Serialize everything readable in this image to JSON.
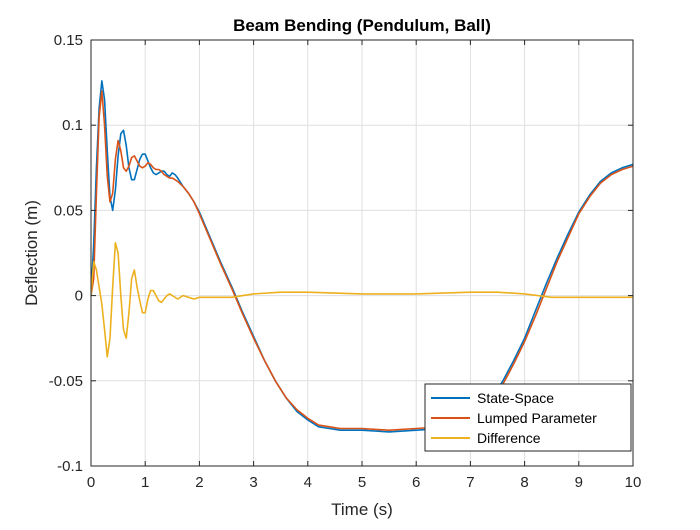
{
  "chart_data": {
    "type": "line",
    "title": "Beam Bending (Pendulum, Ball)",
    "xlabel": "Time (s)",
    "ylabel": "Deflection (m)",
    "xlim": [
      0,
      10
    ],
    "ylim": [
      -0.1,
      0.15
    ],
    "xticks": [
      0,
      1,
      2,
      3,
      4,
      5,
      6,
      7,
      8,
      9,
      10
    ],
    "xtick_labels": [
      "0",
      "1",
      "2",
      "3",
      "4",
      "5",
      "6",
      "7",
      "8",
      "9",
      "10"
    ],
    "yticks": [
      -0.1,
      -0.05,
      0,
      0.05,
      0.1,
      0.15
    ],
    "ytick_labels": [
      "-0.1",
      "-0.05",
      "0",
      "0.05",
      "0.1",
      "0.15"
    ],
    "grid": true,
    "legend_position": "bottom-right",
    "series": [
      {
        "name": "State-Space",
        "color": "#0072BD",
        "x": [
          0,
          0.05,
          0.1,
          0.15,
          0.2,
          0.25,
          0.3,
          0.35,
          0.4,
          0.45,
          0.5,
          0.55,
          0.6,
          0.65,
          0.7,
          0.75,
          0.8,
          0.85,
          0.9,
          0.95,
          1.0,
          1.05,
          1.1,
          1.15,
          1.2,
          1.25,
          1.3,
          1.35,
          1.4,
          1.45,
          1.5,
          1.55,
          1.6,
          1.7,
          1.8,
          1.9,
          2.0,
          2.2,
          2.4,
          2.6,
          2.8,
          3.0,
          3.2,
          3.4,
          3.6,
          3.8,
          4.0,
          4.2,
          4.4,
          4.6,
          4.8,
          5.0,
          5.5,
          6.0,
          6.5,
          7.0,
          7.2,
          7.4,
          7.6,
          7.8,
          8.0,
          8.2,
          8.4,
          8.6,
          8.8,
          9.0,
          9.2,
          9.4,
          9.6,
          9.8,
          10.0
        ],
        "y": [
          0.0,
          0.03,
          0.075,
          0.11,
          0.126,
          0.115,
          0.085,
          0.058,
          0.05,
          0.062,
          0.082,
          0.095,
          0.097,
          0.088,
          0.075,
          0.068,
          0.068,
          0.074,
          0.08,
          0.083,
          0.083,
          0.079,
          0.075,
          0.072,
          0.071,
          0.072,
          0.073,
          0.073,
          0.071,
          0.07,
          0.072,
          0.071,
          0.069,
          0.064,
          0.06,
          0.055,
          0.049,
          0.034,
          0.019,
          0.005,
          -0.01,
          -0.024,
          -0.038,
          -0.05,
          -0.06,
          -0.068,
          -0.073,
          -0.077,
          -0.078,
          -0.079,
          -0.079,
          -0.079,
          -0.08,
          -0.079,
          -0.078,
          -0.073,
          -0.068,
          -0.06,
          -0.05,
          -0.038,
          -0.025,
          -0.009,
          0.007,
          0.022,
          0.036,
          0.049,
          0.059,
          0.067,
          0.072,
          0.075,
          0.077
        ]
      },
      {
        "name": "Lumped Parameter",
        "color": "#D95319",
        "x": [
          0,
          0.05,
          0.1,
          0.15,
          0.2,
          0.25,
          0.3,
          0.35,
          0.4,
          0.45,
          0.5,
          0.55,
          0.6,
          0.65,
          0.7,
          0.75,
          0.8,
          0.85,
          0.9,
          0.95,
          1.0,
          1.05,
          1.1,
          1.15,
          1.2,
          1.25,
          1.3,
          1.35,
          1.4,
          1.45,
          1.5,
          1.55,
          1.6,
          1.7,
          1.8,
          1.9,
          2.0,
          2.2,
          2.4,
          2.6,
          2.8,
          3.0,
          3.2,
          3.4,
          3.6,
          3.8,
          4.0,
          4.2,
          4.4,
          4.6,
          4.8,
          5.0,
          5.5,
          6.0,
          6.5,
          7.0,
          7.2,
          7.4,
          7.6,
          7.8,
          8.0,
          8.2,
          8.4,
          8.6,
          8.8,
          9.0,
          9.2,
          9.4,
          9.6,
          9.8,
          10.0
        ],
        "y": [
          0.0,
          0.01,
          0.06,
          0.105,
          0.12,
          0.1,
          0.07,
          0.055,
          0.06,
          0.08,
          0.091,
          0.085,
          0.075,
          0.073,
          0.076,
          0.081,
          0.082,
          0.079,
          0.076,
          0.075,
          0.076,
          0.078,
          0.077,
          0.075,
          0.074,
          0.074,
          0.073,
          0.071,
          0.07,
          0.069,
          0.069,
          0.068,
          0.067,
          0.064,
          0.06,
          0.055,
          0.048,
          0.033,
          0.018,
          0.004,
          -0.011,
          -0.025,
          -0.038,
          -0.05,
          -0.06,
          -0.067,
          -0.072,
          -0.076,
          -0.077,
          -0.078,
          -0.078,
          -0.078,
          -0.079,
          -0.078,
          -0.077,
          -0.073,
          -0.069,
          -0.062,
          -0.052,
          -0.04,
          -0.027,
          -0.012,
          0.004,
          0.02,
          0.034,
          0.048,
          0.058,
          0.066,
          0.071,
          0.074,
          0.076
        ]
      },
      {
        "name": "Difference",
        "color": "#EDB120",
        "x": [
          0,
          0.05,
          0.1,
          0.15,
          0.2,
          0.25,
          0.3,
          0.35,
          0.4,
          0.45,
          0.5,
          0.55,
          0.6,
          0.65,
          0.7,
          0.75,
          0.8,
          0.85,
          0.9,
          0.95,
          1.0,
          1.05,
          1.1,
          1.15,
          1.2,
          1.25,
          1.3,
          1.35,
          1.4,
          1.45,
          1.5,
          1.6,
          1.7,
          1.8,
          1.9,
          2.0,
          2.2,
          2.4,
          2.6,
          2.8,
          3.0,
          3.5,
          4.0,
          5.0,
          6.0,
          7.0,
          7.5,
          8.0,
          8.5,
          9.0,
          10.0
        ],
        "y": [
          0.0,
          0.02,
          0.015,
          0.005,
          -0.005,
          -0.02,
          -0.036,
          -0.025,
          0.005,
          0.031,
          0.025,
          0.0,
          -0.02,
          -0.025,
          -0.01,
          0.01,
          0.015,
          0.005,
          -0.003,
          -0.01,
          -0.01,
          -0.002,
          0.003,
          0.003,
          0.0,
          -0.003,
          -0.004,
          -0.002,
          0.0,
          0.001,
          0.0,
          -0.002,
          0.0,
          -0.001,
          -0.002,
          -0.001,
          -0.001,
          -0.001,
          -0.001,
          0.0,
          0.001,
          0.002,
          0.002,
          0.001,
          0.001,
          0.002,
          0.002,
          0.001,
          -0.001,
          -0.001,
          -0.001
        ]
      }
    ]
  }
}
